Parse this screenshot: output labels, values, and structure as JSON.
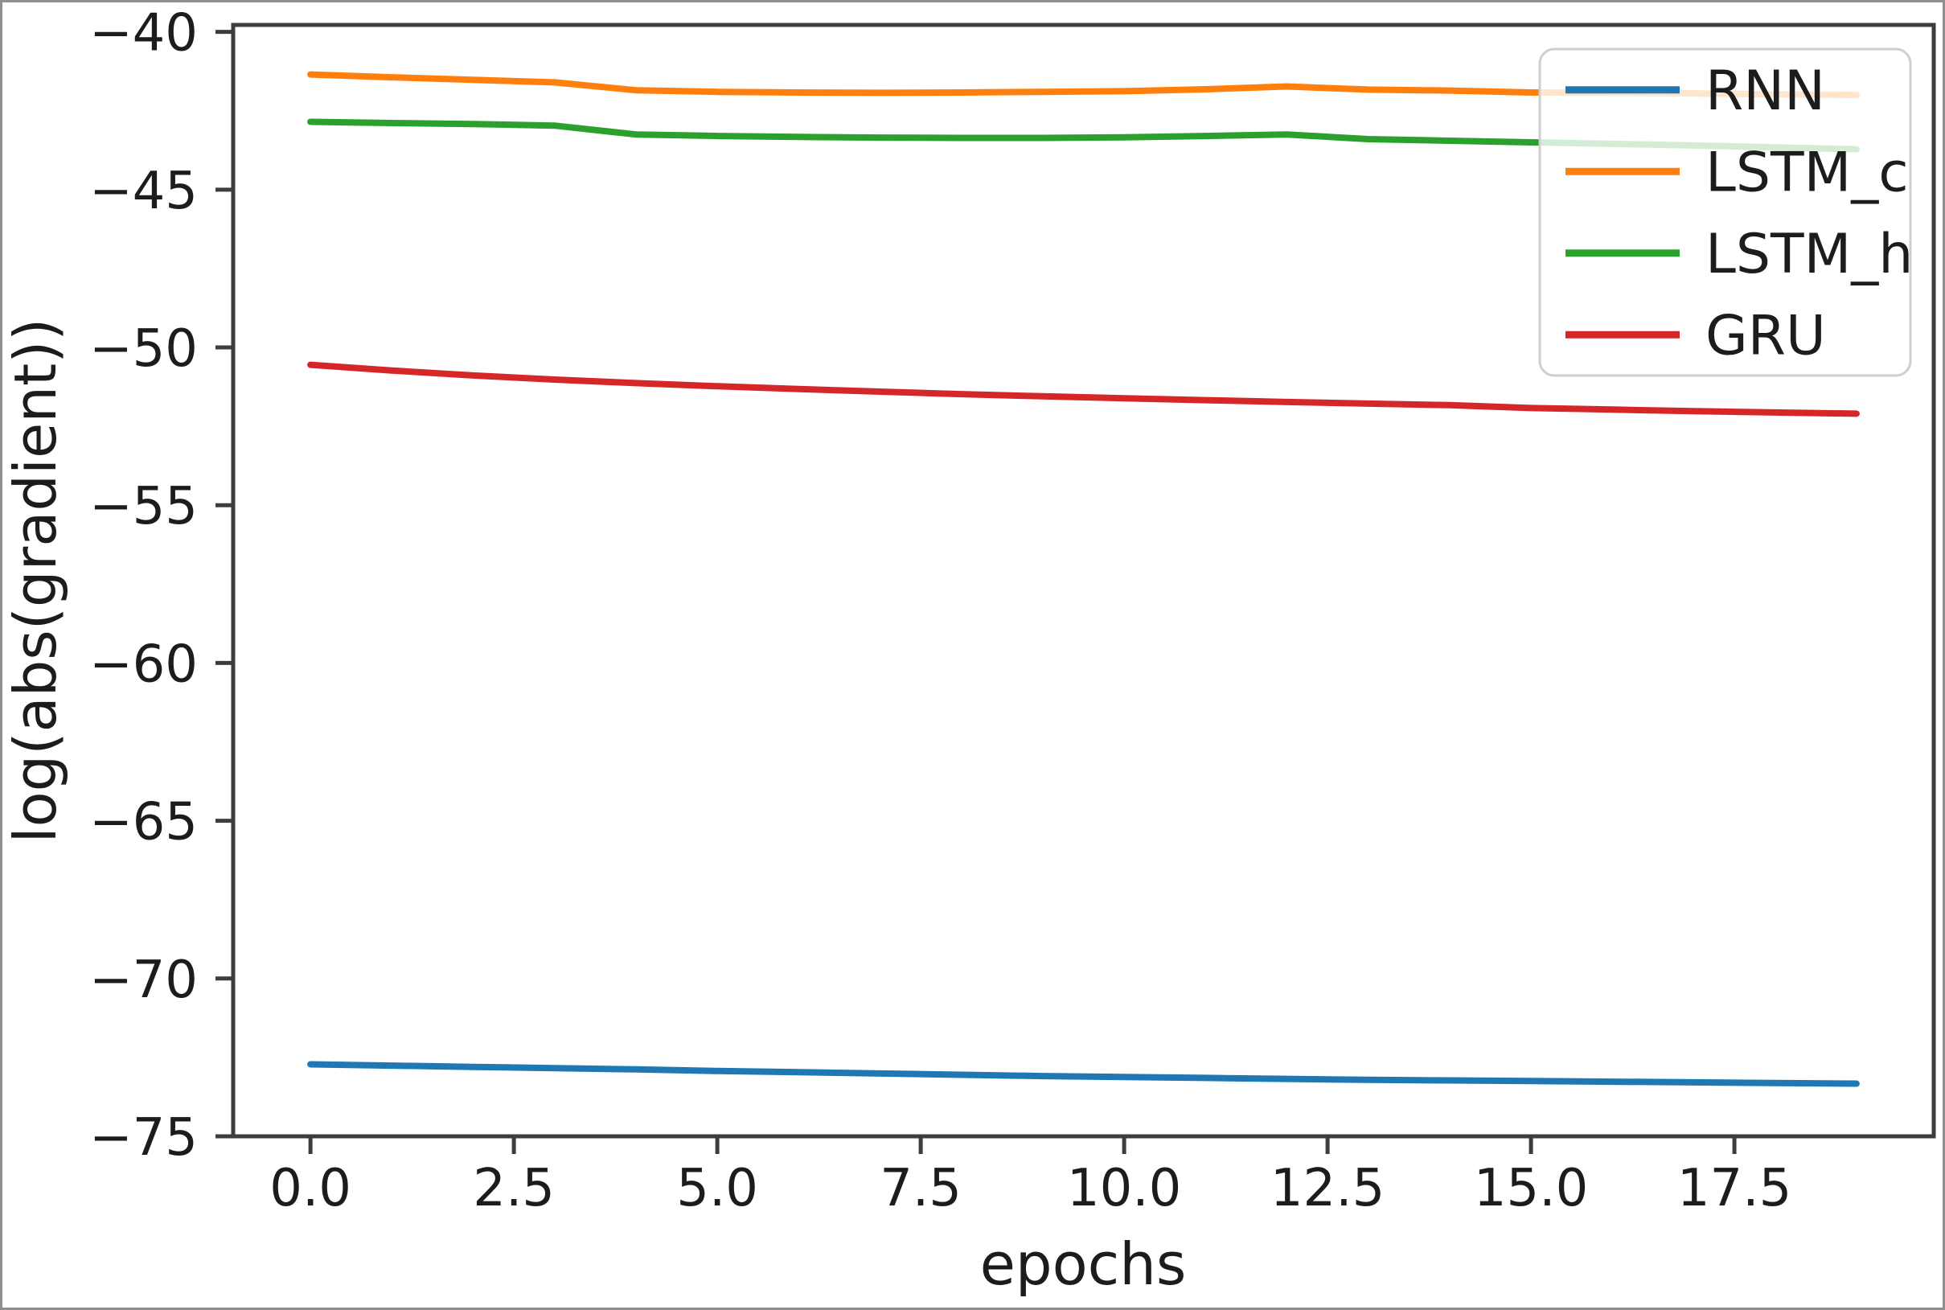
{
  "chart_data": {
    "type": "line",
    "title": "",
    "xlabel": "epochs",
    "ylabel": "log(abs(gradient))",
    "xlim": [
      -0.95,
      19.95
    ],
    "ylim": [
      -75.0,
      -39.78
    ],
    "grid": false,
    "x_ticks": [
      {
        "value": 0,
        "label": "0.0"
      },
      {
        "value": 2.5,
        "label": "2.5"
      },
      {
        "value": 5,
        "label": "5.0"
      },
      {
        "value": 7.5,
        "label": "7.5"
      },
      {
        "value": 10,
        "label": "10.0"
      },
      {
        "value": 12.5,
        "label": "12.5"
      },
      {
        "value": 15,
        "label": "15.0"
      },
      {
        "value": 17.5,
        "label": "17.5"
      }
    ],
    "y_ticks": [
      {
        "value": -40,
        "label": "−40"
      },
      {
        "value": -45,
        "label": "−45"
      },
      {
        "value": -50,
        "label": "−50"
      },
      {
        "value": -55,
        "label": "−55"
      },
      {
        "value": -60,
        "label": "−60"
      },
      {
        "value": -65,
        "label": "−65"
      },
      {
        "value": -70,
        "label": "−70"
      },
      {
        "value": -75,
        "label": "−75"
      }
    ],
    "x": [
      0,
      1,
      2,
      3,
      4,
      5,
      6,
      7,
      8,
      9,
      10,
      11,
      12,
      13,
      14,
      15,
      16,
      17,
      18,
      19
    ],
    "series": [
      {
        "name": "RNN",
        "color": "#1f77b4",
        "values": [
          -72.72,
          -72.76,
          -72.8,
          -72.84,
          -72.88,
          -72.93,
          -72.97,
          -73.01,
          -73.05,
          -73.09,
          -73.12,
          -73.15,
          -73.18,
          -73.21,
          -73.23,
          -73.25,
          -73.27,
          -73.29,
          -73.31,
          -73.33
        ]
      },
      {
        "name": "LSTM_c",
        "color": "#ff7f0e",
        "values": [
          -41.35,
          -41.44,
          -41.52,
          -41.6,
          -41.85,
          -41.9,
          -41.92,
          -41.93,
          -41.92,
          -41.9,
          -41.88,
          -41.82,
          -41.73,
          -41.83,
          -41.86,
          -41.92,
          -41.93,
          -41.95,
          -41.98,
          -42.0
        ]
      },
      {
        "name": "LSTM_h",
        "color": "#2ca02c",
        "values": [
          -42.85,
          -42.89,
          -42.92,
          -42.97,
          -43.25,
          -43.3,
          -43.33,
          -43.35,
          -43.36,
          -43.36,
          -43.34,
          -43.3,
          -43.25,
          -43.4,
          -43.45,
          -43.5,
          -43.55,
          -43.6,
          -43.66,
          -43.72
        ]
      },
      {
        "name": "GRU",
        "color": "#d62728",
        "values": [
          -50.55,
          -50.73,
          -50.89,
          -51.02,
          -51.13,
          -51.23,
          -51.32,
          -51.4,
          -51.48,
          -51.55,
          -51.61,
          -51.67,
          -51.73,
          -51.78,
          -51.83,
          -51.92,
          -51.97,
          -52.02,
          -52.06,
          -52.1
        ]
      }
    ],
    "legend": {
      "position": "upper right",
      "entries": [
        "RNN",
        "LSTM_c",
        "LSTM_h",
        "GRU"
      ]
    }
  }
}
